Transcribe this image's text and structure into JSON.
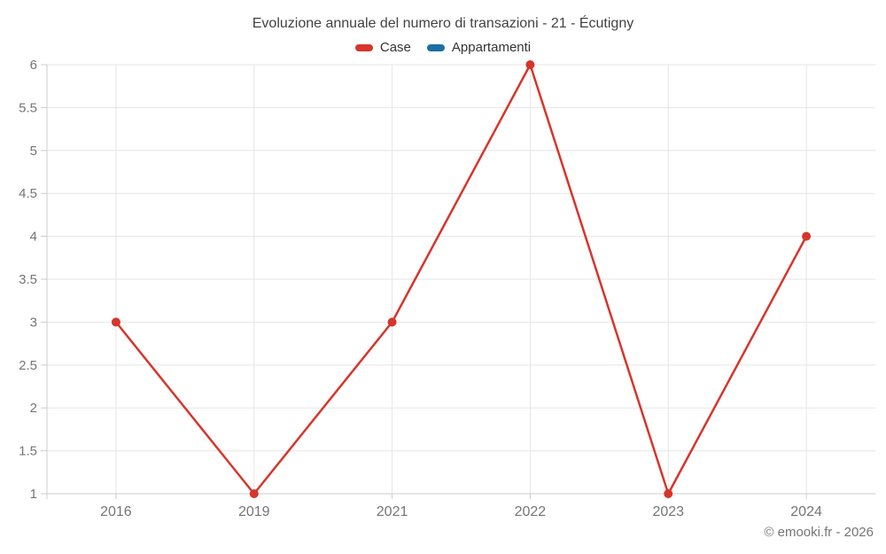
{
  "chart": {
    "title": "Evoluzione annuale del numero di transazioni - 21 - Écutigny",
    "credit": "© emooki.fr - 2026"
  },
  "chart_data": {
    "type": "line",
    "title": "Evoluzione annuale del numero di transazioni - 21 - Écutigny",
    "categories": [
      "2016",
      "2019",
      "2021",
      "2022",
      "2023",
      "2024"
    ],
    "series": [
      {
        "name": "Case",
        "color": "#d7352b",
        "values": [
          3,
          1,
          3,
          6,
          1,
          4
        ]
      },
      {
        "name": "Appartamenti",
        "color": "#1c6ea4",
        "values": []
      }
    ],
    "xlabel": "",
    "ylabel": "",
    "ylim": [
      1,
      6
    ],
    "ytick_step": 0.5,
    "yticks": [
      1,
      1.5,
      2,
      2.5,
      3,
      3.5,
      4,
      4.5,
      5,
      5.5,
      6
    ],
    "grid": true,
    "legend_position": "top",
    "marker": "circle",
    "colors": {
      "gridline": "#e6e6e6",
      "axis_line": "#cccccc",
      "tick_label": "#757575",
      "title_text": "#424242",
      "legend_text": "#333333"
    }
  }
}
